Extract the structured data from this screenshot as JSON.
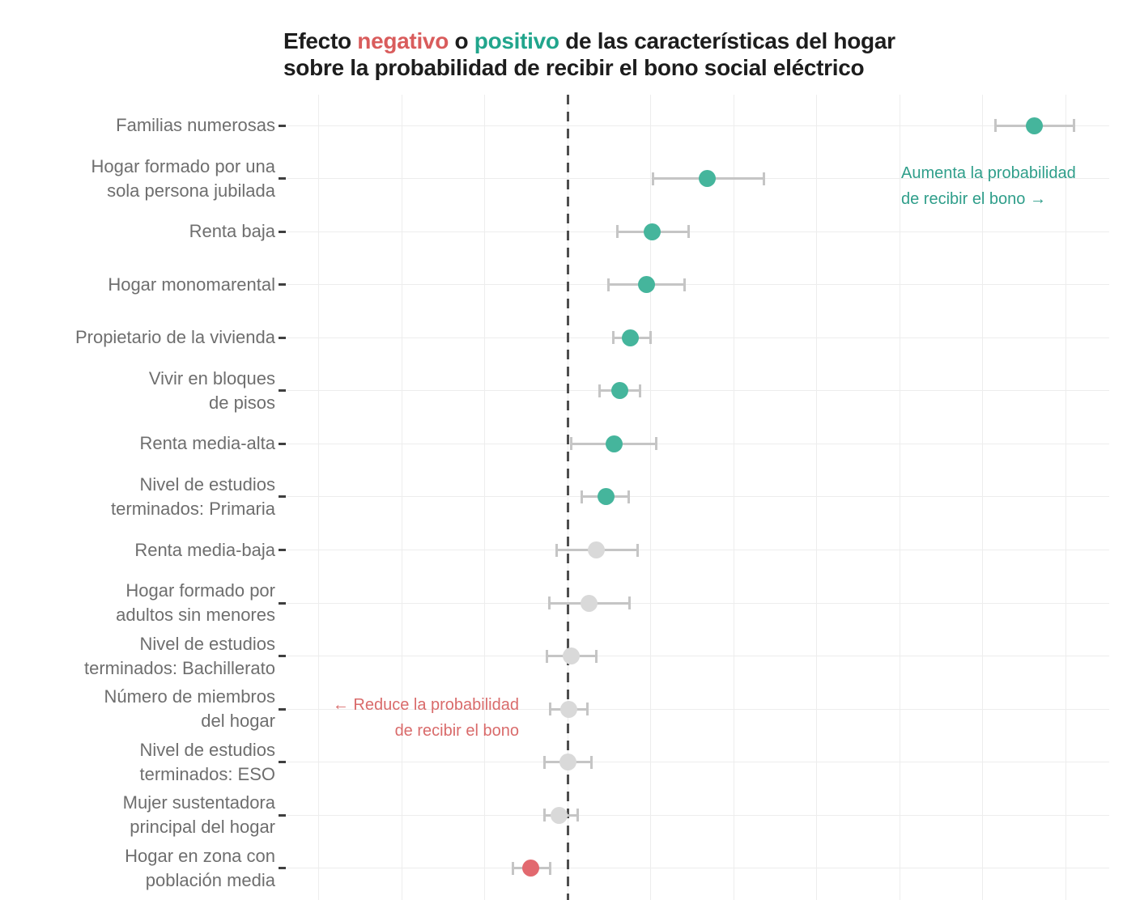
{
  "page": {
    "background": "#ffffff"
  },
  "title": {
    "parts": [
      {
        "text": "Efecto ",
        "color_key": "title_text"
      },
      {
        "text": "negativo",
        "color_key": "negative_accent"
      },
      {
        "text": " o ",
        "color_key": "title_text"
      },
      {
        "text": "positivo",
        "color_key": "positive_accent"
      },
      {
        "text": " de las características del hogar",
        "color_key": "title_text"
      }
    ],
    "line2": "sobre la probabilidad de recibir el bono social eléctrico"
  },
  "palette": {
    "title_text": "#1d1d1d",
    "negative_accent": "#d95c5c",
    "positive_accent": "#21a58c",
    "dot_positive": "#45b59c",
    "dot_neutral": "#d9d9d9",
    "dot_negative": "#e2696f",
    "error_bar": "#c5c5c5",
    "gridline": "#ededed",
    "zero_line": "#4e4e4e",
    "label_text": "#6e6e6e",
    "tick_mark": "#3f3f3f",
    "annotation_positive": "#2f9e8a",
    "annotation_negative": "#d96b6b"
  },
  "annotations": {
    "aumenta": {
      "text": "Aumenta la probabilidad\nde recibir el bono →"
    },
    "reduce": {
      "text": "← Reduce la probabilidad\nde recibir el bono"
    }
  },
  "chart_data": {
    "type": "scatter",
    "subtype": "dot_plot_with_horizontal_error_bars",
    "title": "Efecto negativo o positivo de las características del hogar sobre la probabilidad de recibir el bono social eléctrico",
    "xlabel": "",
    "ylabel": "",
    "x_axis": {
      "zero_reference_line": 0,
      "gridline_step": 1,
      "tick_labels_visible": false,
      "approx_range": [
        -3.4,
        6.5
      ],
      "grid": "on"
    },
    "legend": "none",
    "rows": [
      {
        "label_lines": [
          "Familias numerosas"
        ],
        "est": 5.62,
        "lo": 5.16,
        "hi": 6.1,
        "effect": "positive"
      },
      {
        "label_lines": [
          "Hogar formado por una",
          "sola persona jubilada"
        ],
        "est": 1.68,
        "lo": 1.03,
        "hi": 2.37,
        "effect": "positive"
      },
      {
        "label_lines": [
          "Renta baja"
        ],
        "est": 1.02,
        "lo": 0.6,
        "hi": 1.46,
        "effect": "positive"
      },
      {
        "label_lines": [
          "Hogar monomarental"
        ],
        "est": 0.95,
        "lo": 0.49,
        "hi": 1.41,
        "effect": "positive"
      },
      {
        "label_lines": [
          "Propietario de la vivienda"
        ],
        "est": 0.76,
        "lo": 0.55,
        "hi": 1.0,
        "effect": "positive"
      },
      {
        "label_lines": [
          "Vivir en bloques",
          "de pisos"
        ],
        "est": 0.63,
        "lo": 0.39,
        "hi": 0.87,
        "effect": "positive"
      },
      {
        "label_lines": [
          "Renta media-alta"
        ],
        "est": 0.56,
        "lo": 0.04,
        "hi": 1.07,
        "effect": "positive"
      },
      {
        "label_lines": [
          "Nivel de estudios",
          "terminados: Primaria"
        ],
        "est": 0.46,
        "lo": 0.17,
        "hi": 0.74,
        "effect": "positive"
      },
      {
        "label_lines": [
          "Renta media-baja"
        ],
        "est": 0.35,
        "lo": -0.13,
        "hi": 0.84,
        "effect": "not_significant"
      },
      {
        "label_lines": [
          "Hogar formado por",
          "adultos sin menores"
        ],
        "est": 0.26,
        "lo": -0.22,
        "hi": 0.75,
        "effect": "not_significant"
      },
      {
        "label_lines": [
          "Nivel de estudios",
          "terminados: Bachillerato"
        ],
        "est": 0.04,
        "lo": -0.25,
        "hi": 0.35,
        "effect": "not_significant"
      },
      {
        "label_lines": [
          "Número de miembros",
          "del hogar"
        ],
        "est": 0.01,
        "lo": -0.21,
        "hi": 0.24,
        "effect": "not_significant"
      },
      {
        "label_lines": [
          "Nivel de estudios",
          "terminados: ESO"
        ],
        "est": 0.0,
        "lo": -0.28,
        "hi": 0.29,
        "effect": "not_significant"
      },
      {
        "label_lines": [
          "Mujer sustentadora",
          "principal del hogar"
        ],
        "est": -0.1,
        "lo": -0.28,
        "hi": 0.12,
        "effect": "not_significant"
      },
      {
        "label_lines": [
          "Hogar en zona con",
          "población media"
        ],
        "est": -0.44,
        "lo": -0.66,
        "hi": -0.21,
        "effect": "negative"
      }
    ],
    "annotations": [
      {
        "text": "Aumenta la probabilidad de recibir el bono →",
        "side": "positive"
      },
      {
        "text": "← Reduce la probabilidad de recibir el bono",
        "side": "negative"
      }
    ]
  }
}
